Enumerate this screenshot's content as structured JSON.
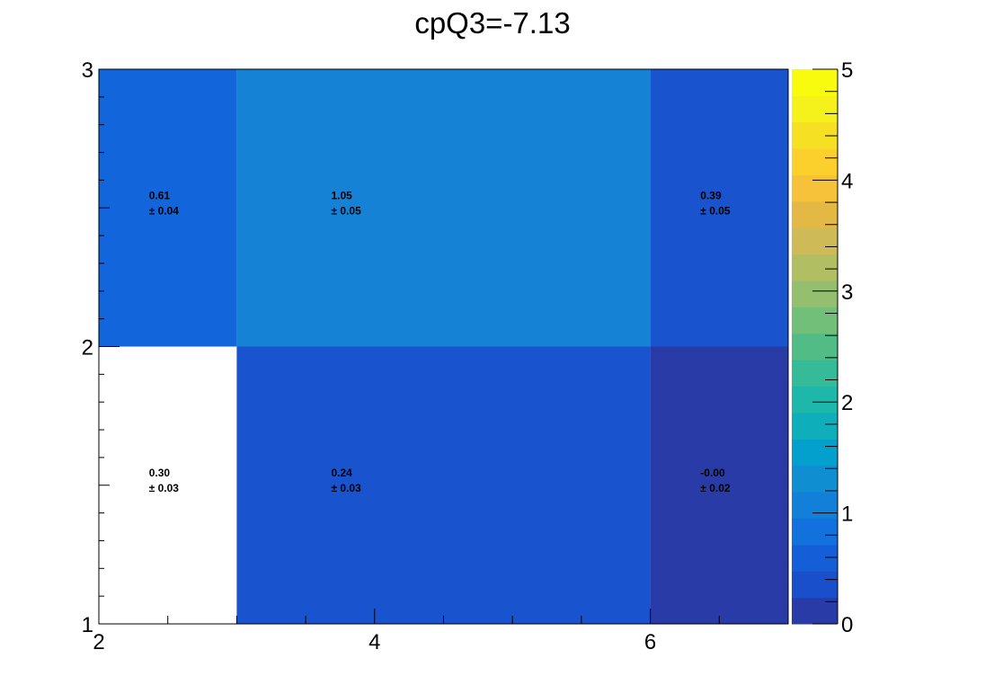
{
  "chart_data": {
    "type": "heatmap",
    "title": "cpQ3=-7.13",
    "xlabel": "",
    "ylabel": "",
    "x_edges": [
      2,
      3,
      6,
      7
    ],
    "y_edges": [
      1,
      2,
      3
    ],
    "xlim": [
      2,
      7
    ],
    "ylim": [
      1,
      3
    ],
    "zlim": [
      0,
      5
    ],
    "x_ticks": [
      "2",
      "4",
      "6"
    ],
    "y_ticks": [
      "1",
      "2",
      "3"
    ],
    "z_ticks": [
      "0",
      "1",
      "2",
      "3",
      "4",
      "5"
    ],
    "cells": [
      {
        "x": [
          2,
          3
        ],
        "y": [
          1,
          2
        ],
        "value": "0.30",
        "error": "± 0.03",
        "color": "#ffffff"
      },
      {
        "x": [
          3,
          6
        ],
        "y": [
          1,
          2
        ],
        "value": "0.24",
        "error": "± 0.03",
        "color": "#1953cd"
      },
      {
        "x": [
          6,
          7
        ],
        "y": [
          1,
          2
        ],
        "value": "-0.00",
        "error": "± 0.02",
        "color": "#283ba6"
      },
      {
        "x": [
          2,
          3
        ],
        "y": [
          2,
          3
        ],
        "value": "0.61",
        "error": "± 0.04",
        "color": "#1265db"
      },
      {
        "x": [
          3,
          6
        ],
        "y": [
          2,
          3
        ],
        "value": "1.05",
        "error": "± 0.05",
        "color": "#1582d6"
      },
      {
        "x": [
          6,
          7
        ],
        "y": [
          2,
          3
        ],
        "value": "0.39",
        "error": "± 0.05",
        "color": "#1953cd"
      }
    ],
    "palette": [
      "#283ba6",
      "#1a4fcb",
      "#145fd8",
      "#1271dc",
      "#127fd8",
      "#0f8ed2",
      "#04a0cd",
      "#0faebb",
      "#1eb8aa",
      "#35bb97",
      "#51bc86",
      "#72bf79",
      "#93bf6e",
      "#b1be62",
      "#cebb58",
      "#e3b845",
      "#f6c23a",
      "#fbcf2c",
      "#f5e023",
      "#f4f21a",
      "#f9fb0e"
    ]
  }
}
